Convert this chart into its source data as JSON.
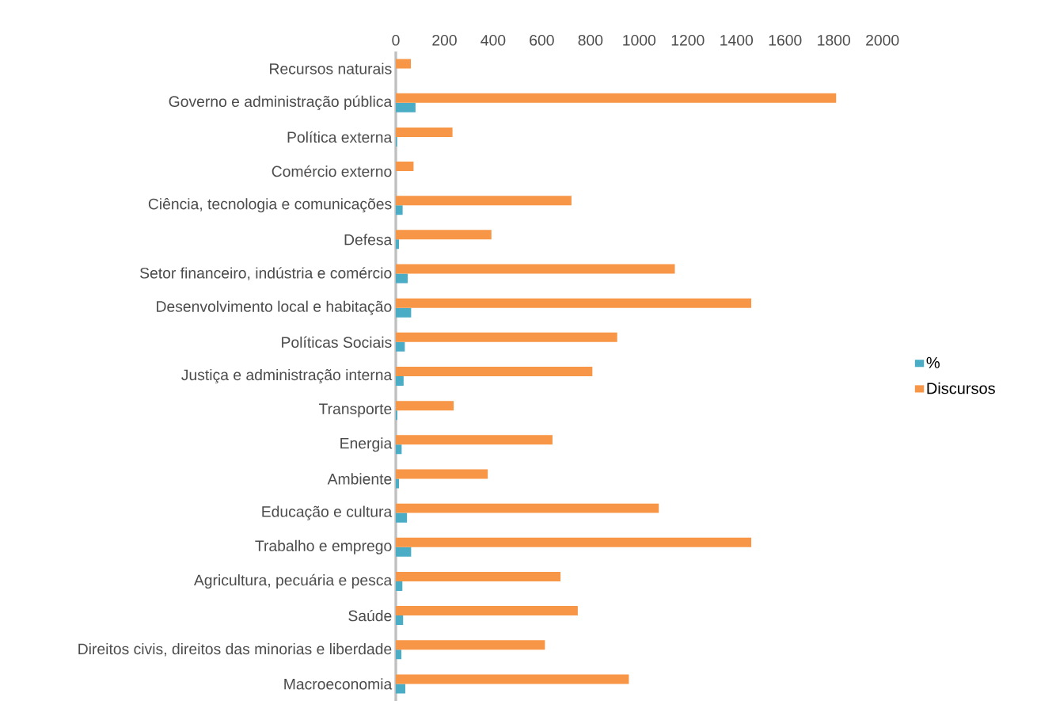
{
  "chart_data": {
    "type": "bar",
    "orientation": "horizontal",
    "categories": [
      "Recursos naturais",
      "Governo e administração pública",
      "Política externa",
      "Comércio externo",
      "Ciência, tecnologia e comunicações",
      "Defesa",
      "Setor financeiro, indústria e comércio",
      "Desenvolvimento local e habitação",
      "Políticas Sociais",
      "Justiça e administração interna",
      "Transporte",
      "Energia",
      "Ambiente",
      "Educação e cultura",
      "Trabalho e emprego",
      "Agricultura, pecuária e pesca",
      "Saúde",
      "Direitos civis, direitos das minorias e liberdade",
      "Macroeconomia"
    ],
    "series": [
      {
        "name": "%",
        "color": "#4bacc6",
        "values": [
          0,
          81,
          5,
          0,
          28,
          13,
          49,
          63,
          37,
          32,
          6,
          24,
          13,
          46,
          63,
          27,
          30,
          23,
          39
        ]
      },
      {
        "name": "Discursos",
        "color": "#f79646",
        "values": [
          62,
          1810,
          233,
          73,
          722,
          393,
          1147,
          1461,
          910,
          808,
          238,
          644,
          378,
          1081,
          1461,
          677,
          748,
          613,
          958
        ]
      }
    ],
    "xlim": [
      0,
      2000
    ],
    "xticks": [
      0,
      200,
      400,
      600,
      800,
      1000,
      1200,
      1400,
      1600,
      1800,
      2000
    ],
    "legend": "right"
  }
}
